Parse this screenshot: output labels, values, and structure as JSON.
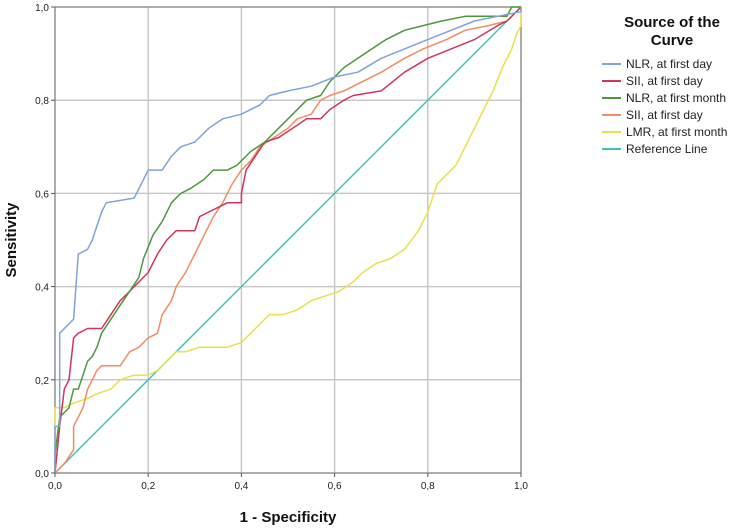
{
  "chart_data": {
    "type": "line",
    "xlabel": "1 - Specificity",
    "ylabel": "Sensitivity",
    "xlim": [
      0,
      1
    ],
    "ylim": [
      0,
      1
    ],
    "grid": true,
    "legend_position": "right",
    "x_ticks": [
      "0,0",
      "0,2",
      "0,4",
      "0,6",
      "0,8",
      "1,0"
    ],
    "y_ticks": [
      "0,0",
      "0,2",
      "0,4",
      "0,6",
      "0,8",
      "1,0"
    ],
    "legend_title": [
      "Source of the",
      "Curve"
    ],
    "series": [
      {
        "name": "NLR, at first day",
        "color": "#7fa3de",
        "points": [
          [
            0,
            0
          ],
          [
            0,
            0.1
          ],
          [
            0.01,
            0.1
          ],
          [
            0.01,
            0.3
          ],
          [
            0.03,
            0.32
          ],
          [
            0.04,
            0.33
          ],
          [
            0.05,
            0.47
          ],
          [
            0.07,
            0.48
          ],
          [
            0.08,
            0.5
          ],
          [
            0.09,
            0.53
          ],
          [
            0.1,
            0.56
          ],
          [
            0.11,
            0.58
          ],
          [
            0.17,
            0.59
          ],
          [
            0.18,
            0.61
          ],
          [
            0.2,
            0.65
          ],
          [
            0.23,
            0.65
          ],
          [
            0.25,
            0.68
          ],
          [
            0.27,
            0.7
          ],
          [
            0.3,
            0.71
          ],
          [
            0.33,
            0.74
          ],
          [
            0.36,
            0.76
          ],
          [
            0.4,
            0.77
          ],
          [
            0.44,
            0.79
          ],
          [
            0.46,
            0.81
          ],
          [
            0.5,
            0.82
          ],
          [
            0.55,
            0.83
          ],
          [
            0.6,
            0.85
          ],
          [
            0.65,
            0.86
          ],
          [
            0.7,
            0.89
          ],
          [
            0.75,
            0.91
          ],
          [
            0.8,
            0.93
          ],
          [
            0.85,
            0.95
          ],
          [
            0.9,
            0.97
          ],
          [
            0.95,
            0.98
          ],
          [
            1.0,
            0.99
          ],
          [
            1.0,
            1.0
          ]
        ]
      },
      {
        "name": "SII, at first day",
        "color": "#d2355c",
        "points": [
          [
            0,
            0
          ],
          [
            0.01,
            0.1
          ],
          [
            0.02,
            0.18
          ],
          [
            0.03,
            0.2
          ],
          [
            0.04,
            0.29
          ],
          [
            0.05,
            0.3
          ],
          [
            0.07,
            0.31
          ],
          [
            0.1,
            0.31
          ],
          [
            0.12,
            0.34
          ],
          [
            0.14,
            0.37
          ],
          [
            0.16,
            0.39
          ],
          [
            0.18,
            0.41
          ],
          [
            0.2,
            0.43
          ],
          [
            0.22,
            0.47
          ],
          [
            0.24,
            0.5
          ],
          [
            0.26,
            0.52
          ],
          [
            0.3,
            0.52
          ],
          [
            0.31,
            0.55
          ],
          [
            0.33,
            0.56
          ],
          [
            0.35,
            0.57
          ],
          [
            0.37,
            0.58
          ],
          [
            0.4,
            0.58
          ],
          [
            0.4,
            0.6
          ],
          [
            0.41,
            0.65
          ],
          [
            0.43,
            0.68
          ],
          [
            0.45,
            0.71
          ],
          [
            0.48,
            0.72
          ],
          [
            0.51,
            0.74
          ],
          [
            0.54,
            0.76
          ],
          [
            0.57,
            0.76
          ],
          [
            0.59,
            0.78
          ],
          [
            0.62,
            0.8
          ],
          [
            0.64,
            0.81
          ],
          [
            0.7,
            0.82
          ],
          [
            0.75,
            0.86
          ],
          [
            0.8,
            0.89
          ],
          [
            0.85,
            0.91
          ],
          [
            0.9,
            0.93
          ],
          [
            0.95,
            0.96
          ],
          [
            0.97,
            0.97
          ],
          [
            1.0,
            1.0
          ]
        ]
      },
      {
        "name": "NLR, at first month",
        "color": "#4a9a3c",
        "points": [
          [
            0,
            0
          ],
          [
            0,
            0.04
          ],
          [
            0.01,
            0.12
          ],
          [
            0.03,
            0.14
          ],
          [
            0.04,
            0.18
          ],
          [
            0.05,
            0.18
          ],
          [
            0.06,
            0.21
          ],
          [
            0.07,
            0.24
          ],
          [
            0.08,
            0.25
          ],
          [
            0.09,
            0.27
          ],
          [
            0.1,
            0.3
          ],
          [
            0.12,
            0.33
          ],
          [
            0.14,
            0.36
          ],
          [
            0.16,
            0.39
          ],
          [
            0.18,
            0.42
          ],
          [
            0.19,
            0.46
          ],
          [
            0.21,
            0.51
          ],
          [
            0.23,
            0.54
          ],
          [
            0.25,
            0.58
          ],
          [
            0.27,
            0.6
          ],
          [
            0.29,
            0.61
          ],
          [
            0.32,
            0.63
          ],
          [
            0.34,
            0.65
          ],
          [
            0.37,
            0.65
          ],
          [
            0.39,
            0.66
          ],
          [
            0.42,
            0.69
          ],
          [
            0.45,
            0.71
          ],
          [
            0.48,
            0.74
          ],
          [
            0.51,
            0.77
          ],
          [
            0.54,
            0.8
          ],
          [
            0.57,
            0.81
          ],
          [
            0.59,
            0.84
          ],
          [
            0.62,
            0.87
          ],
          [
            0.65,
            0.89
          ],
          [
            0.68,
            0.91
          ],
          [
            0.71,
            0.93
          ],
          [
            0.75,
            0.95
          ],
          [
            0.79,
            0.96
          ],
          [
            0.83,
            0.97
          ],
          [
            0.88,
            0.98
          ],
          [
            0.95,
            0.98
          ],
          [
            0.97,
            0.98
          ],
          [
            0.98,
            1.0
          ],
          [
            1.0,
            1.0
          ]
        ]
      },
      {
        "name": "SII, at first day",
        "color": "#f28c62",
        "points": [
          [
            0,
            0
          ],
          [
            0.02,
            0.02
          ],
          [
            0.04,
            0.05
          ],
          [
            0.04,
            0.1
          ],
          [
            0.06,
            0.14
          ],
          [
            0.07,
            0.18
          ],
          [
            0.08,
            0.2
          ],
          [
            0.09,
            0.22
          ],
          [
            0.1,
            0.23
          ],
          [
            0.14,
            0.23
          ],
          [
            0.16,
            0.26
          ],
          [
            0.18,
            0.27
          ],
          [
            0.2,
            0.29
          ],
          [
            0.22,
            0.3
          ],
          [
            0.23,
            0.34
          ],
          [
            0.25,
            0.37
          ],
          [
            0.26,
            0.4
          ],
          [
            0.28,
            0.43
          ],
          [
            0.3,
            0.47
          ],
          [
            0.32,
            0.51
          ],
          [
            0.34,
            0.55
          ],
          [
            0.36,
            0.58
          ],
          [
            0.38,
            0.62
          ],
          [
            0.4,
            0.65
          ],
          [
            0.42,
            0.67
          ],
          [
            0.44,
            0.7
          ],
          [
            0.47,
            0.72
          ],
          [
            0.5,
            0.74
          ],
          [
            0.52,
            0.76
          ],
          [
            0.55,
            0.77
          ],
          [
            0.57,
            0.8
          ],
          [
            0.59,
            0.81
          ],
          [
            0.62,
            0.82
          ],
          [
            0.66,
            0.84
          ],
          [
            0.7,
            0.86
          ],
          [
            0.75,
            0.89
          ],
          [
            0.79,
            0.91
          ],
          [
            0.84,
            0.93
          ],
          [
            0.88,
            0.95
          ],
          [
            0.93,
            0.96
          ],
          [
            0.97,
            0.97
          ],
          [
            1.0,
            1.0
          ]
        ]
      },
      {
        "name": "LMR, at first month",
        "color": "#e9e04a",
        "points": [
          [
            0,
            0
          ],
          [
            0,
            0.14
          ],
          [
            0.02,
            0.14
          ],
          [
            0.04,
            0.15
          ],
          [
            0.07,
            0.16
          ],
          [
            0.09,
            0.17
          ],
          [
            0.12,
            0.18
          ],
          [
            0.14,
            0.2
          ],
          [
            0.17,
            0.21
          ],
          [
            0.2,
            0.21
          ],
          [
            0.22,
            0.22
          ],
          [
            0.24,
            0.24
          ],
          [
            0.26,
            0.26
          ],
          [
            0.28,
            0.26
          ],
          [
            0.31,
            0.27
          ],
          [
            0.34,
            0.27
          ],
          [
            0.37,
            0.27
          ],
          [
            0.4,
            0.28
          ],
          [
            0.42,
            0.3
          ],
          [
            0.44,
            0.32
          ],
          [
            0.46,
            0.34
          ],
          [
            0.49,
            0.34
          ],
          [
            0.52,
            0.35
          ],
          [
            0.55,
            0.37
          ],
          [
            0.58,
            0.38
          ],
          [
            0.61,
            0.39
          ],
          [
            0.64,
            0.41
          ],
          [
            0.66,
            0.43
          ],
          [
            0.69,
            0.45
          ],
          [
            0.72,
            0.46
          ],
          [
            0.75,
            0.48
          ],
          [
            0.78,
            0.52
          ],
          [
            0.8,
            0.56
          ],
          [
            0.82,
            0.62
          ],
          [
            0.84,
            0.64
          ],
          [
            0.86,
            0.66
          ],
          [
            0.88,
            0.7
          ],
          [
            0.9,
            0.74
          ],
          [
            0.92,
            0.78
          ],
          [
            0.94,
            0.82
          ],
          [
            0.96,
            0.87
          ],
          [
            0.98,
            0.91
          ],
          [
            0.99,
            0.94
          ],
          [
            1.0,
            0.96
          ],
          [
            1.0,
            1.0
          ]
        ]
      },
      {
        "name": "Reference Line",
        "color": "#3ec4b3",
        "points": [
          [
            0,
            0
          ],
          [
            1,
            1
          ]
        ]
      }
    ]
  }
}
